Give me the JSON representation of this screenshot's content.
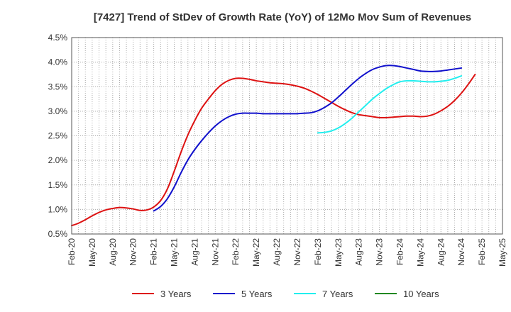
{
  "chart_data": {
    "type": "line",
    "title": "[7427]  Trend of StDev of Growth Rate (YoY) of 12Mo Mov Sum of Revenues",
    "xlabel": "",
    "ylabel": "",
    "ylim": [
      0.5,
      4.5
    ],
    "ytick_values": [
      0.5,
      1.0,
      1.5,
      2.0,
      2.5,
      3.0,
      3.5,
      4.0,
      4.5
    ],
    "ytick_labels": [
      "0.5%",
      "1.0%",
      "1.5%",
      "2.0%",
      "2.5%",
      "3.0%",
      "3.5%",
      "4.0%",
      "4.5%"
    ],
    "xtick_labels": [
      "Feb-20",
      "May-20",
      "Aug-20",
      "Nov-20",
      "Feb-21",
      "May-21",
      "Aug-21",
      "Nov-21",
      "Feb-22",
      "May-22",
      "Aug-22",
      "Nov-22",
      "Feb-23",
      "May-23",
      "Aug-23",
      "Nov-23",
      "Feb-24",
      "May-24",
      "Aug-24",
      "Nov-24",
      "Feb-25",
      "May-25"
    ],
    "grid": true,
    "legend_position": "bottom",
    "series": [
      {
        "name": "3 Years",
        "color": "#dd1111",
        "start_index": 0,
        "values": [
          0.67,
          0.72,
          0.79,
          0.87,
          0.94,
          0.99,
          1.02,
          1.04,
          1.03,
          1.01,
          0.98,
          0.99,
          1.05,
          1.18,
          1.42,
          1.78,
          2.17,
          2.52,
          2.81,
          3.06,
          3.25,
          3.42,
          3.55,
          3.63,
          3.67,
          3.67,
          3.65,
          3.62,
          3.6,
          3.58,
          3.57,
          3.56,
          3.54,
          3.51,
          3.47,
          3.41,
          3.34,
          3.26,
          3.18,
          3.1,
          3.03,
          2.97,
          2.93,
          2.91,
          2.89,
          2.87,
          2.87,
          2.88,
          2.89,
          2.9,
          2.9,
          2.89,
          2.9,
          2.94,
          3.01,
          3.1,
          3.22,
          3.37,
          3.55,
          3.75
        ]
      },
      {
        "name": "5 Years",
        "color": "#1111cc",
        "start_index": 12,
        "values": [
          0.97,
          1.06,
          1.22,
          1.46,
          1.75,
          2.01,
          2.22,
          2.4,
          2.56,
          2.7,
          2.81,
          2.89,
          2.94,
          2.96,
          2.96,
          2.96,
          2.95,
          2.95,
          2.95,
          2.95,
          2.95,
          2.95,
          2.96,
          2.97,
          3.01,
          3.08,
          3.17,
          3.29,
          3.42,
          3.55,
          3.67,
          3.77,
          3.85,
          3.9,
          3.93,
          3.93,
          3.91,
          3.88,
          3.85,
          3.82,
          3.81,
          3.81,
          3.82,
          3.84,
          3.86,
          3.88
        ]
      },
      {
        "name": "7 Years",
        "color": "#22eeee",
        "start_index": 36,
        "values": [
          2.56,
          2.57,
          2.6,
          2.66,
          2.75,
          2.86,
          2.99,
          3.12,
          3.25,
          3.36,
          3.46,
          3.54,
          3.6,
          3.62,
          3.62,
          3.61,
          3.6,
          3.6,
          3.61,
          3.63,
          3.67,
          3.72
        ]
      },
      {
        "name": "10 Years",
        "color": "#228822",
        "start_index": 0,
        "values": []
      }
    ]
  }
}
